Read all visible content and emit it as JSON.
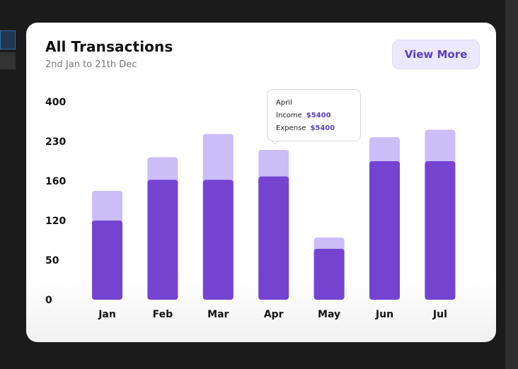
{
  "card": {
    "title": "All Transactions",
    "subtitle": "2nd Jan to 21th Dec",
    "view_more_label": "View More"
  },
  "tooltip": {
    "month": "April",
    "income_label": "Income",
    "income_value": "$5400",
    "expense_label": "Expense",
    "expense_value": "$5400"
  },
  "colors": {
    "bar_dark": "#7444d1",
    "bar_light": "#cbbdf7",
    "accent": "#5b3fc4"
  },
  "chart_data": {
    "type": "bar",
    "stacked": true,
    "categories": [
      "Jan",
      "Feb",
      "Mar",
      "Apr",
      "May",
      "Jun",
      "Jul"
    ],
    "y_tick_labels": [
      "0",
      "50",
      "120",
      "160",
      "230",
      "400"
    ],
    "series": [
      {
        "values": [
          120,
          162,
          162,
          168,
          70,
          195,
          195
        ]
      },
      {
        "values": [
          30,
          40,
          100,
          47,
          20,
          53,
          85
        ]
      }
    ],
    "title": "",
    "xlabel": "",
    "ylabel": "",
    "grid": false,
    "legend": "none"
  }
}
